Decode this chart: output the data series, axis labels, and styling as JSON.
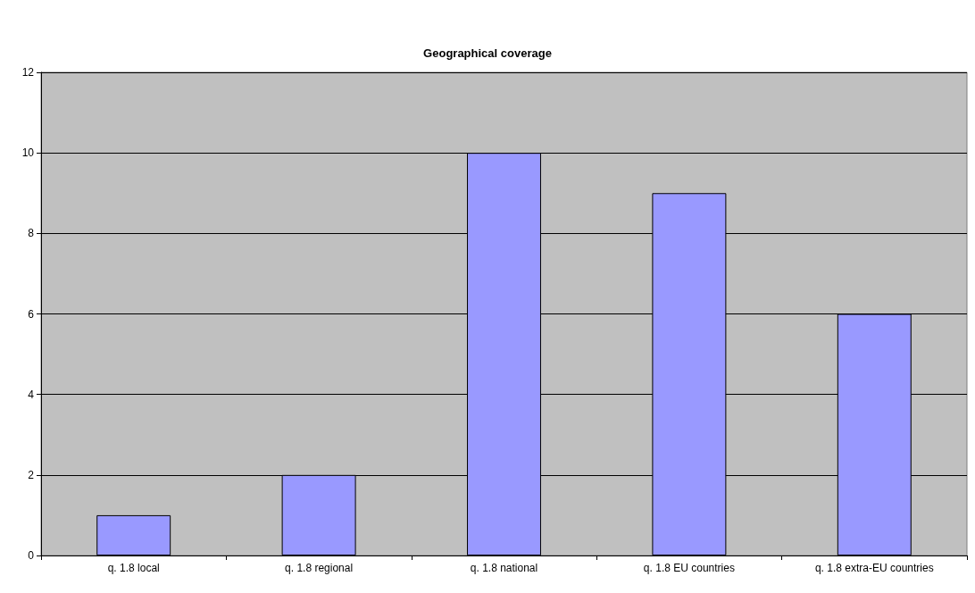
{
  "chart_data": {
    "type": "bar",
    "title": "Geographical coverage",
    "categories": [
      "q. 1.8 local",
      "q. 1.8 regional",
      "q. 1.8 national",
      "q. 1.8 EU countries",
      "q. 1.8 extra-EU countries"
    ],
    "values": [
      1,
      2,
      10,
      9,
      6
    ],
    "color": "#9999ff",
    "ylim": [
      0,
      12
    ],
    "yticks": [
      0,
      2,
      4,
      6,
      8,
      10,
      12
    ],
    "grid": "y"
  }
}
